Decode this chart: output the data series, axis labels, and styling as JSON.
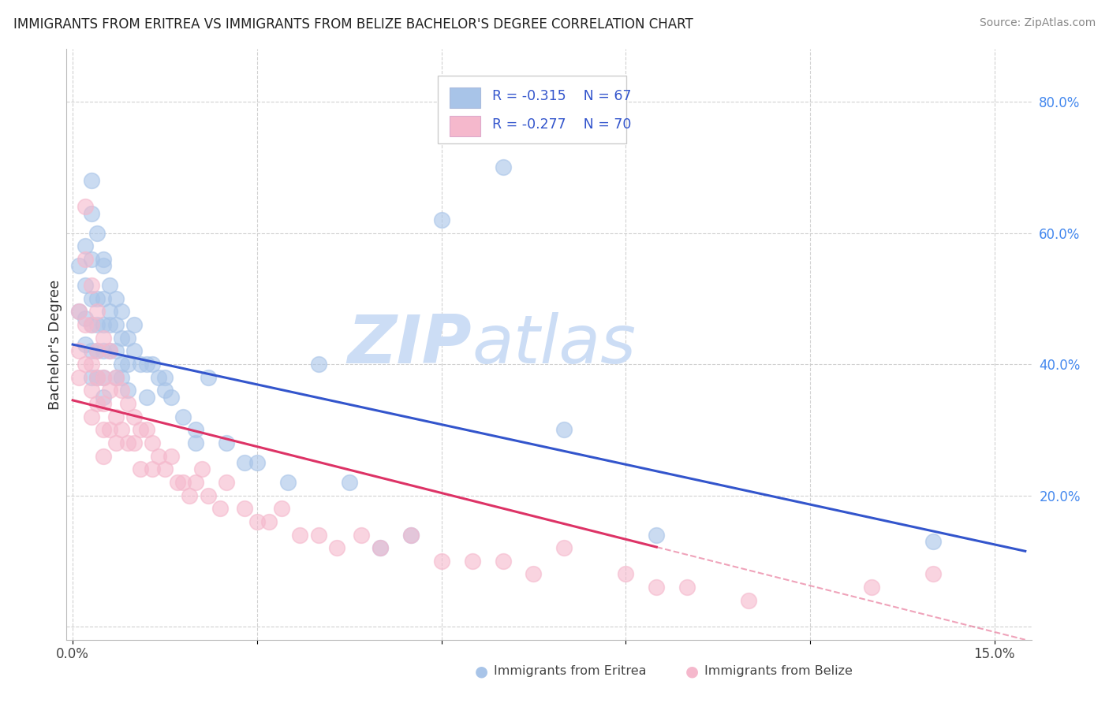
{
  "title": "IMMIGRANTS FROM ERITREA VS IMMIGRANTS FROM BELIZE BACHELOR'S DEGREE CORRELATION CHART",
  "source": "Source: ZipAtlas.com",
  "ylabel": "Bachelor's Degree",
  "xlim": [
    -0.001,
    0.156
  ],
  "ylim": [
    -0.02,
    0.88
  ],
  "x_tick_positions": [
    0.0,
    0.03,
    0.06,
    0.09,
    0.12,
    0.15
  ],
  "x_tick_labels": [
    "0.0%",
    "",
    "",
    "",
    "",
    "15.0%"
  ],
  "y_tick_positions": [
    0.0,
    0.2,
    0.4,
    0.6,
    0.8
  ],
  "y_tick_labels": [
    "",
    "20.0%",
    "40.0%",
    "60.0%",
    "80.0%"
  ],
  "legend_eritrea_r": "-0.315",
  "legend_eritrea_n": "67",
  "legend_belize_r": "-0.277",
  "legend_belize_n": "70",
  "color_eritrea_fill": "#a8c4e8",
  "color_eritrea_edge": "#7aaad4",
  "color_belize_fill": "#f5b8cc",
  "color_belize_edge": "#e890aa",
  "color_trend_eritrea": "#3355cc",
  "color_trend_belize": "#dd3366",
  "watermark_color": "#ccddf5",
  "eritrea_x": [
    0.001,
    0.001,
    0.002,
    0.002,
    0.002,
    0.002,
    0.003,
    0.003,
    0.003,
    0.003,
    0.003,
    0.003,
    0.004,
    0.004,
    0.004,
    0.004,
    0.005,
    0.005,
    0.005,
    0.005,
    0.005,
    0.005,
    0.006,
    0.006,
    0.006,
    0.007,
    0.007,
    0.007,
    0.008,
    0.008,
    0.008,
    0.009,
    0.009,
    0.01,
    0.01,
    0.011,
    0.012,
    0.013,
    0.014,
    0.015,
    0.016,
    0.018,
    0.02,
    0.022,
    0.025,
    0.028,
    0.03,
    0.035,
    0.04,
    0.045,
    0.05,
    0.055,
    0.06,
    0.07,
    0.08,
    0.095,
    0.14,
    0.003,
    0.004,
    0.005,
    0.006,
    0.007,
    0.008,
    0.009,
    0.012,
    0.015,
    0.02
  ],
  "eritrea_y": [
    0.55,
    0.48,
    0.58,
    0.52,
    0.47,
    0.43,
    0.63,
    0.56,
    0.5,
    0.46,
    0.42,
    0.38,
    0.5,
    0.46,
    0.42,
    0.38,
    0.56,
    0.5,
    0.46,
    0.42,
    0.38,
    0.35,
    0.52,
    0.46,
    0.42,
    0.46,
    0.42,
    0.38,
    0.48,
    0.44,
    0.4,
    0.44,
    0.4,
    0.46,
    0.42,
    0.4,
    0.4,
    0.4,
    0.38,
    0.38,
    0.35,
    0.32,
    0.3,
    0.38,
    0.28,
    0.25,
    0.25,
    0.22,
    0.4,
    0.22,
    0.12,
    0.14,
    0.62,
    0.7,
    0.3,
    0.14,
    0.13,
    0.68,
    0.6,
    0.55,
    0.48,
    0.5,
    0.38,
    0.36,
    0.35,
    0.36,
    0.28
  ],
  "belize_x": [
    0.001,
    0.001,
    0.001,
    0.002,
    0.002,
    0.002,
    0.002,
    0.003,
    0.003,
    0.003,
    0.003,
    0.003,
    0.004,
    0.004,
    0.004,
    0.004,
    0.005,
    0.005,
    0.005,
    0.005,
    0.005,
    0.006,
    0.006,
    0.006,
    0.007,
    0.007,
    0.007,
    0.008,
    0.008,
    0.009,
    0.009,
    0.01,
    0.01,
    0.011,
    0.011,
    0.012,
    0.013,
    0.013,
    0.014,
    0.015,
    0.016,
    0.017,
    0.018,
    0.019,
    0.02,
    0.021,
    0.022,
    0.024,
    0.025,
    0.028,
    0.03,
    0.032,
    0.034,
    0.037,
    0.04,
    0.043,
    0.047,
    0.05,
    0.055,
    0.06,
    0.065,
    0.07,
    0.075,
    0.08,
    0.09,
    0.095,
    0.1,
    0.11,
    0.13,
    0.14
  ],
  "belize_y": [
    0.48,
    0.42,
    0.38,
    0.64,
    0.56,
    0.46,
    0.4,
    0.52,
    0.46,
    0.4,
    0.36,
    0.32,
    0.48,
    0.42,
    0.38,
    0.34,
    0.44,
    0.38,
    0.34,
    0.3,
    0.26,
    0.42,
    0.36,
    0.3,
    0.38,
    0.32,
    0.28,
    0.36,
    0.3,
    0.34,
    0.28,
    0.32,
    0.28,
    0.3,
    0.24,
    0.3,
    0.28,
    0.24,
    0.26,
    0.24,
    0.26,
    0.22,
    0.22,
    0.2,
    0.22,
    0.24,
    0.2,
    0.18,
    0.22,
    0.18,
    0.16,
    0.16,
    0.18,
    0.14,
    0.14,
    0.12,
    0.14,
    0.12,
    0.14,
    0.1,
    0.1,
    0.1,
    0.08,
    0.12,
    0.08,
    0.06,
    0.06,
    0.04,
    0.06,
    0.08
  ],
  "trend_eritrea_x0": 0.0,
  "trend_eritrea_x1": 0.155,
  "trend_eritrea_y0": 0.43,
  "trend_eritrea_y1": 0.115,
  "trend_belize_x0": 0.0,
  "trend_belize_x1": 0.155,
  "trend_belize_y0": 0.345,
  "trend_belize_y1": -0.02,
  "trend_belize_solid_end": 0.095
}
